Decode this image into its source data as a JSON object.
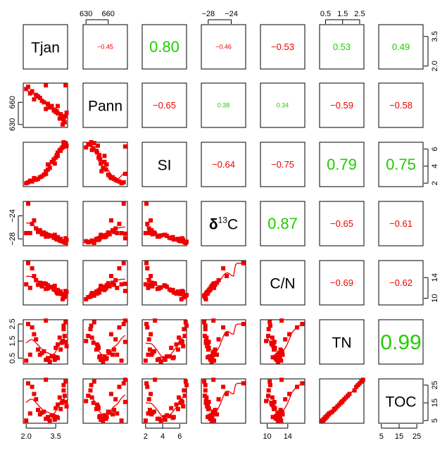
{
  "colors": {
    "positive": "#22cc00",
    "negative": "#ee0000",
    "points": "#ee0000",
    "frame": "#000000"
  },
  "chart_data": {
    "type": "scatter",
    "subtype": "pairs-matrix",
    "variables": [
      "Tjan",
      "Pann",
      "SI",
      "δ13C",
      "C/N",
      "TN",
      "TOC"
    ],
    "diagonal_labels": [
      "Tjan",
      "Pann",
      "SI",
      "13",
      "C",
      "C/N",
      "TN",
      "TOC"
    ],
    "delta_prefix": "δ",
    "ranges": {
      "Tjan": [
        1.85,
        4.1
      ],
      "Pann": [
        626,
        686
      ],
      "SI": [
        1.6,
        6.8
      ],
      "d13C": [
        -29.2,
        -21.5
      ],
      "CN": [
        8.7,
        17.3
      ],
      "TN": [
        0.15,
        2.75
      ],
      "TOC": [
        3.5,
        28.5
      ]
    },
    "axis_ticks": {
      "top": [
        {
          "column": 1,
          "values": [
            630,
            660
          ],
          "labels": [
            "630",
            "660"
          ]
        },
        {
          "column": 3,
          "values": [
            -28,
            -24
          ],
          "labels": [
            "−28",
            "−24"
          ]
        },
        {
          "column": 5,
          "values": [
            0.5,
            1.5,
            2.5
          ],
          "labels": [
            "0.5",
            "1.5",
            "2.5"
          ]
        }
      ],
      "bottom": [
        {
          "column": 0,
          "values": [
            2.0,
            3.5
          ],
          "labels": [
            "2.0",
            "3.5"
          ]
        },
        {
          "column": 2,
          "values": [
            2,
            4,
            6
          ],
          "labels": [
            "2",
            "4",
            "6"
          ]
        },
        {
          "column": 4,
          "values": [
            10,
            14
          ],
          "labels": [
            "10",
            "14"
          ]
        },
        {
          "column": 6,
          "values": [
            5,
            15,
            25
          ],
          "labels": [
            "5",
            "15",
            "25"
          ]
        }
      ],
      "left": [
        {
          "row": 1,
          "values": [
            630,
            660
          ],
          "labels": [
            "630",
            "660"
          ]
        },
        {
          "row": 3,
          "values": [
            -28,
            -24
          ],
          "labels": [
            "−28",
            "−24"
          ]
        },
        {
          "row": 5,
          "values": [
            0.5,
            1.5,
            2.5
          ],
          "labels": [
            "0.5",
            "1.5",
            "2.5"
          ]
        }
      ],
      "right": [
        {
          "row": 0,
          "values": [
            2.0,
            3.5
          ],
          "labels": [
            "2.0",
            "3.5"
          ]
        },
        {
          "row": 2,
          "values": [
            2,
            4,
            6
          ],
          "labels": [
            "2",
            "4",
            "6"
          ]
        },
        {
          "row": 4,
          "values": [
            10,
            14
          ],
          "labels": [
            "10",
            "14"
          ]
        },
        {
          "row": 6,
          "values": [
            5,
            15,
            25
          ],
          "labels": [
            "5",
            "15",
            "25"
          ]
        }
      ]
    },
    "correlations": [
      {
        "row": 0,
        "col": 1,
        "label": "−0.45",
        "value": -0.45,
        "size": "small"
      },
      {
        "row": 0,
        "col": 2,
        "label": "0.80",
        "value": 0.8,
        "size": "large"
      },
      {
        "row": 0,
        "col": 3,
        "label": "−0.46",
        "value": -0.46,
        "size": "small"
      },
      {
        "row": 0,
        "col": 4,
        "label": "−0.53",
        "value": -0.53,
        "size": "medium"
      },
      {
        "row": 0,
        "col": 5,
        "label": "0.53",
        "value": 0.53,
        "size": "medium"
      },
      {
        "row": 0,
        "col": 6,
        "label": "0.49",
        "value": 0.49,
        "size": "medium"
      },
      {
        "row": 1,
        "col": 2,
        "label": "−0.65",
        "value": -0.65,
        "size": "medium"
      },
      {
        "row": 1,
        "col": 3,
        "label": "0.38",
        "value": 0.38,
        "size": "small"
      },
      {
        "row": 1,
        "col": 4,
        "label": "0.34",
        "value": 0.34,
        "size": "small"
      },
      {
        "row": 1,
        "col": 5,
        "label": "−0.59",
        "value": -0.59,
        "size": "medium"
      },
      {
        "row": 1,
        "col": 6,
        "label": "−0.58",
        "value": -0.58,
        "size": "medium"
      },
      {
        "row": 2,
        "col": 3,
        "label": "−0.64",
        "value": -0.64,
        "size": "medium"
      },
      {
        "row": 2,
        "col": 4,
        "label": "−0.75",
        "value": -0.75,
        "size": "medium"
      },
      {
        "row": 2,
        "col": 5,
        "label": "0.79",
        "value": 0.79,
        "size": "large"
      },
      {
        "row": 2,
        "col": 6,
        "label": "0.75",
        "value": 0.75,
        "size": "large"
      },
      {
        "row": 3,
        "col": 4,
        "label": "0.87",
        "value": 0.87,
        "size": "large"
      },
      {
        "row": 3,
        "col": 5,
        "label": "−0.65",
        "value": -0.65,
        "size": "medium"
      },
      {
        "row": 3,
        "col": 6,
        "label": "−0.61",
        "value": -0.61,
        "size": "medium"
      },
      {
        "row": 4,
        "col": 5,
        "label": "−0.69",
        "value": -0.69,
        "size": "medium"
      },
      {
        "row": 4,
        "col": 6,
        "label": "−0.62",
        "value": -0.62,
        "size": "medium"
      },
      {
        "row": 5,
        "col": 6,
        "label": "0.99",
        "value": 0.99,
        "size": "xlarge"
      }
    ],
    "observations": {
      "Tjan": [
        3.1,
        2.2,
        2.4,
        3.0,
        3.8,
        2.6,
        3.5,
        3.9,
        4.0,
        2.1,
        3.3,
        3.6,
        2.9,
        3.7,
        2.5,
        3.95,
        3.2,
        2.8,
        3.4,
        4.05,
        3.0,
        2.3,
        3.6,
        3.85,
        2.7,
        3.45,
        3.75,
        2.0,
        3.9,
        3.1,
        4.0,
        3.55
      ],
      "Pann": [
        658,
        672,
        664,
        651,
        640,
        668,
        647,
        636,
        641,
        681,
        655,
        645,
        660,
        638,
        670,
        633,
        653,
        662,
        649,
        646,
        683,
        675,
        655,
        630,
        666,
        650,
        644,
        678,
        637,
        657,
        683,
        648
      ],
      "SI": [
        4.2,
        2.3,
        2.6,
        3.4,
        6.1,
        2.5,
        5.0,
        6.5,
        6.7,
        2.1,
        4.5,
        5.6,
        3.0,
        5.9,
        2.4,
        6.6,
        3.8,
        2.8,
        4.8,
        6.4,
        3.1,
        2.2,
        5.2,
        6.2,
        2.7,
        4.3,
        5.8,
        2.0,
        6.8,
        3.6,
        6.3,
        5.3
      ],
      "d13C": [
        -27.3,
        -27.0,
        -24.8,
        -27.6,
        -28.4,
        -26.8,
        -27.9,
        -28.5,
        -28.7,
        -21.9,
        -27.5,
        -28.1,
        -26.9,
        -28.3,
        -26.2,
        -28.6,
        -27.4,
        -27.2,
        -27.8,
        -28.2,
        -27.1,
        -25.4,
        -27.7,
        -28.4,
        -26.5,
        -27.3,
        -28.0,
        -27.0,
        -28.5,
        -27.6,
        -27.9,
        -28.1
      ],
      "CN": [
        12.5,
        12.0,
        14.3,
        11.8,
        10.8,
        12.6,
        11.5,
        10.3,
        10.5,
        16.8,
        12.2,
        10.9,
        12.9,
        11.0,
        13.5,
        10.2,
        12.1,
        12.3,
        11.7,
        11.2,
        12.8,
        15.8,
        11.6,
        9.8,
        13.0,
        12.4,
        11.3,
        12.7,
        10.6,
        11.9,
        11.4,
        11.1
      ],
      "TN": [
        0.5,
        0.7,
        1.9,
        0.4,
        1.4,
        1.0,
        1.1,
        2.2,
        2.6,
        2.5,
        0.6,
        1.3,
        0.9,
        1.7,
        1.6,
        1.8,
        0.3,
        0.8,
        0.6,
        1.2,
        2.7,
        2.3,
        0.5,
        1.5,
        0.7,
        0.4,
        1.0,
        0.35,
        2.4,
        0.45,
        1.45,
        0.55
      ],
      "TOC": [
        7,
        9,
        20,
        6,
        15,
        11,
        12,
        22,
        27,
        26,
        8,
        14,
        10,
        18,
        17,
        19,
        5,
        9.5,
        7.5,
        13,
        28,
        24,
        6.5,
        16,
        8.5,
        5.5,
        11.5,
        5,
        25,
        6,
        15.5,
        7
      ]
    }
  }
}
